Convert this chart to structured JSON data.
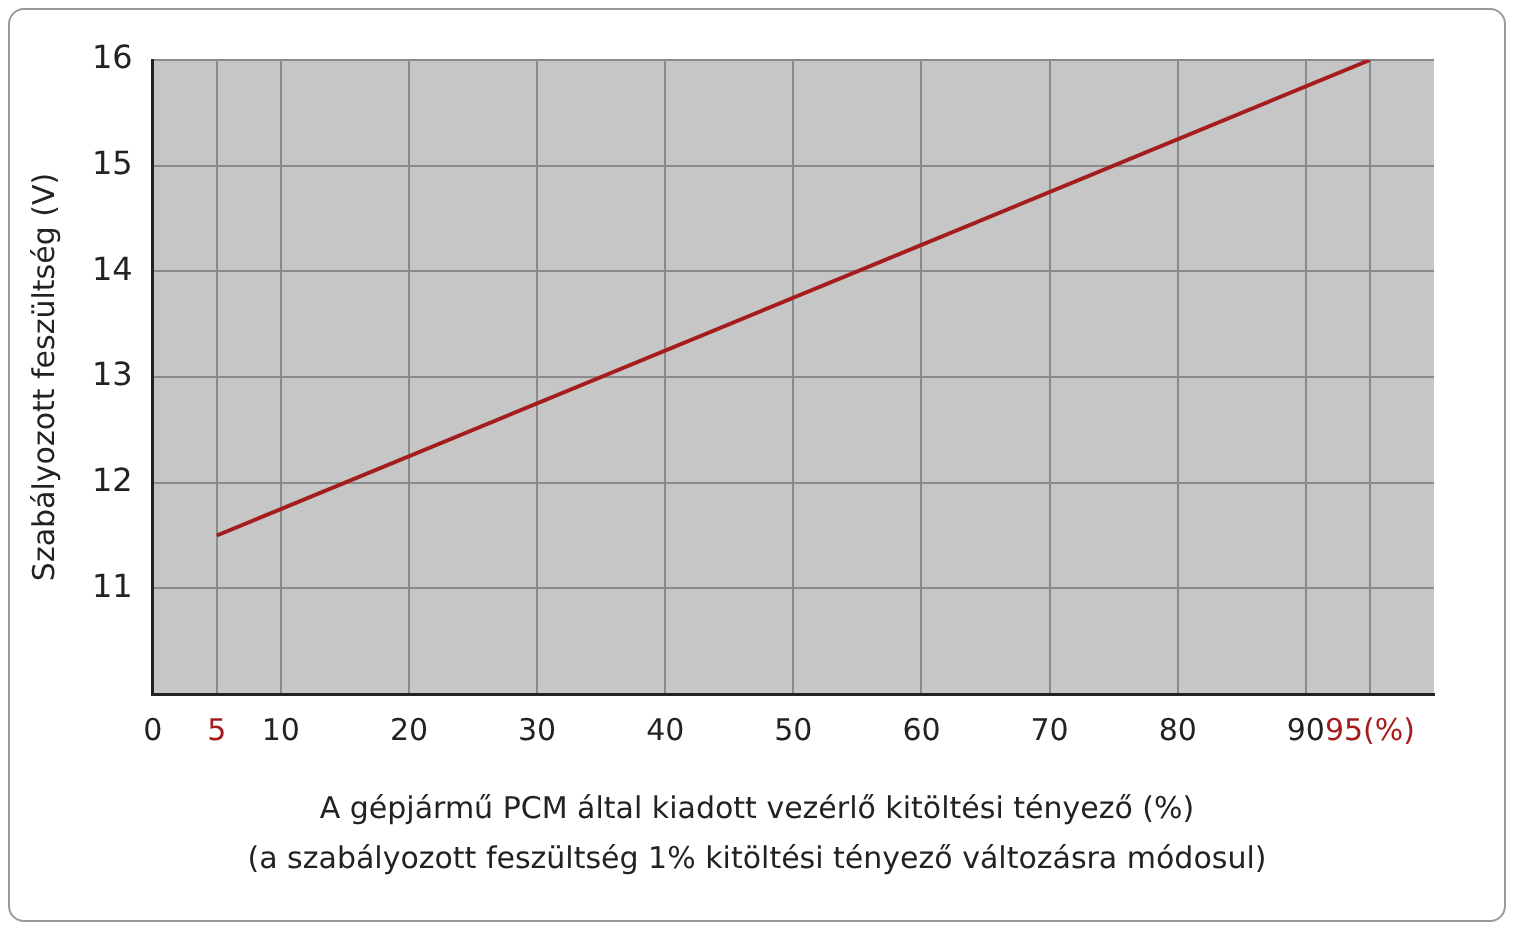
{
  "chart_data": {
    "type": "line",
    "xlabel": "A gépjármű PCM által kiadott vezérlő kitöltési tényező (%)",
    "ylabel": "Szabályozott feszültség (V)",
    "annotations": [
      "(a szabályozott feszültség 1% kitöltési tényező változásra módosul)"
    ],
    "series": [
      {
        "color": "#a51c1c",
        "x": [
          5,
          95
        ],
        "values": [
          11.5,
          16
        ]
      }
    ],
    "xlim": [
      0,
      100
    ],
    "xticks": [
      0,
      5,
      10,
      20,
      30,
      40,
      50,
      60,
      70,
      80,
      90,
      {
        "value": 95,
        "label": "95(%)"
      }
    ],
    "ylim": [
      10,
      16
    ],
    "yticks": [
      11,
      12,
      13,
      14,
      15,
      16
    ],
    "grid": true,
    "legend": false,
    "marker": "none",
    "line_style": "solid"
  }
}
